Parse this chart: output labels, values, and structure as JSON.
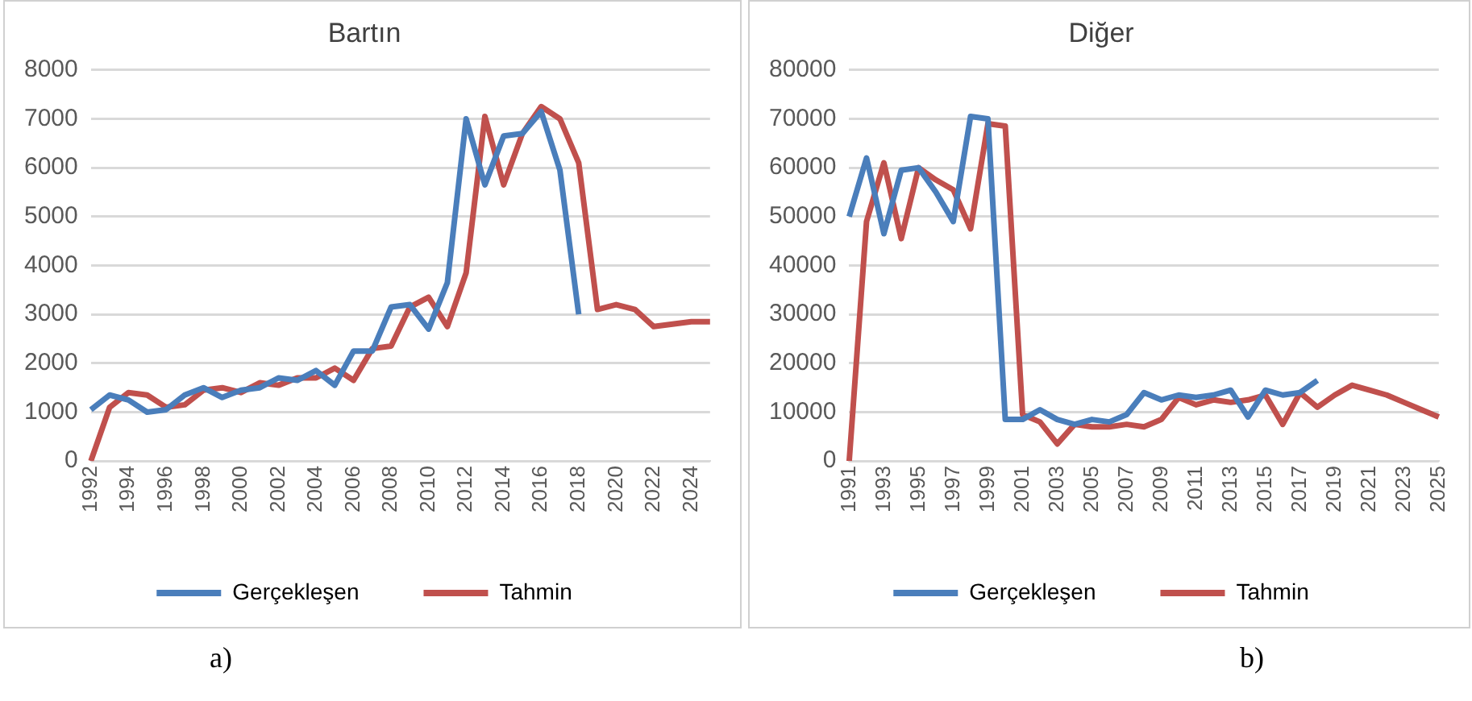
{
  "chart_data": [
    {
      "type": "line",
      "title": "Bartın",
      "categories": [
        "1992",
        null,
        "1994",
        null,
        "1996",
        null,
        "1998",
        null,
        "2000",
        null,
        "2002",
        null,
        "2004",
        null,
        "2006",
        null,
        "2008",
        null,
        "2010",
        null,
        "2012",
        null,
        "2014",
        null,
        "2016",
        null,
        "2018",
        null,
        "2020",
        null,
        "2022",
        null,
        "2024",
        null
      ],
      "series": [
        {
          "name": "Gerçekleşen",
          "color": "#4a7ebb",
          "values": [
            1050,
            1350,
            1250,
            1000,
            1050,
            1350,
            1500,
            1300,
            1450,
            1500,
            1700,
            1650,
            1850,
            1550,
            2250,
            2250,
            3150,
            3200,
            2700,
            3650,
            7000,
            5650,
            6650,
            6700,
            7150,
            5950,
            3000,
            null,
            null,
            null,
            null,
            null,
            null,
            null
          ]
        },
        {
          "name": "Tahmin",
          "color": "#c0504d",
          "values": [
            0,
            1100,
            1400,
            1350,
            1100,
            1150,
            1450,
            1500,
            1400,
            1600,
            1550,
            1700,
            1700,
            1900,
            1650,
            2300,
            2350,
            3150,
            3350,
            2750,
            3850,
            7050,
            5650,
            6700,
            7250,
            7000,
            6100,
            3100,
            3200,
            3100,
            2750,
            2800,
            2850,
            2850
          ]
        }
      ],
      "ylim": [
        0,
        8000
      ],
      "yticks": [
        0,
        1000,
        2000,
        3000,
        4000,
        5000,
        6000,
        7000,
        8000
      ],
      "grid": "y",
      "legend": "bottom",
      "annotations": [
        "a)"
      ]
    },
    {
      "type": "line",
      "title": "Diğer",
      "categories": [
        "1991",
        null,
        "1993",
        null,
        "1995",
        null,
        "1997",
        null,
        "1999",
        null,
        "2001",
        null,
        "2003",
        null,
        "2005",
        null,
        "2007",
        null,
        "2009",
        null,
        "2011",
        null,
        "2013",
        null,
        "2015",
        null,
        "2017",
        null,
        "2019",
        null,
        "2021",
        null,
        "2023",
        null,
        "2025"
      ],
      "series": [
        {
          "name": "Gerçekleşen",
          "color": "#4a7ebb",
          "values": [
            50000,
            62000,
            46500,
            59500,
            60000,
            55000,
            49000,
            70500,
            70000,
            8500,
            8500,
            10500,
            8500,
            7500,
            8500,
            8000,
            9500,
            14000,
            12500,
            13500,
            13000,
            13500,
            14500,
            9000,
            14500,
            13500,
            14000,
            16500,
            null,
            null,
            null,
            null,
            null,
            null,
            null
          ]
        },
        {
          "name": "Tahmin",
          "color": "#c0504d",
          "values": [
            0,
            49000,
            61000,
            45500,
            60000,
            57500,
            55500,
            47500,
            69000,
            68500,
            9500,
            8000,
            3500,
            7500,
            7000,
            7000,
            7500,
            7000,
            8500,
            13000,
            11500,
            12500,
            12000,
            12500,
            13500,
            7500,
            14000,
            11000,
            13500,
            15500,
            14500,
            13500,
            12000,
            10500,
            9000
          ]
        }
      ],
      "ylim": [
        0,
        80000
      ],
      "yticks": [
        0,
        10000,
        20000,
        30000,
        40000,
        50000,
        60000,
        70000,
        80000
      ],
      "grid": "y",
      "legend": "bottom",
      "annotations": [
        "b)"
      ]
    }
  ]
}
